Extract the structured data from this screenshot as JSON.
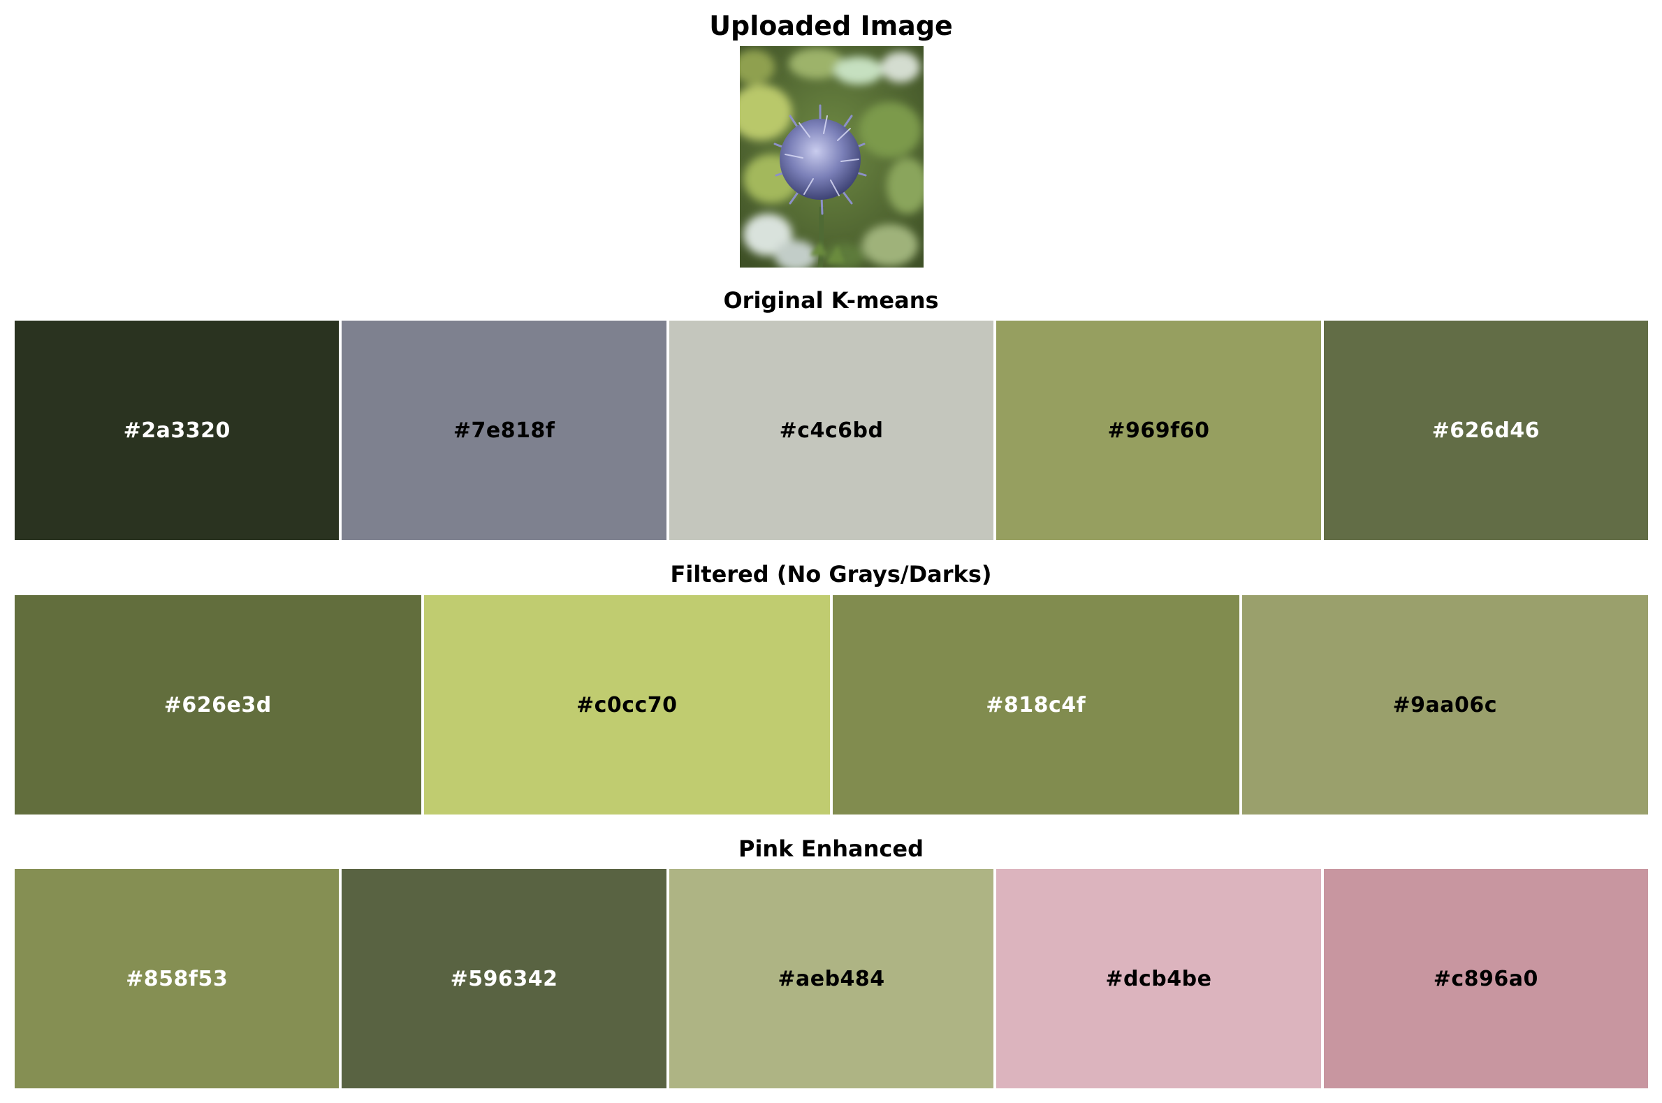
{
  "main_title": "Uploaded Image",
  "image": {
    "icon": "thistle-flower-photo"
  },
  "palettes": [
    {
      "title": "Original K-means",
      "swatches": [
        {
          "hex": "#2a3320",
          "text_color": "#ffffff"
        },
        {
          "hex": "#7e818f",
          "text_color": "#000000"
        },
        {
          "hex": "#c4c6bd",
          "text_color": "#000000"
        },
        {
          "hex": "#969f60",
          "text_color": "#000000"
        },
        {
          "hex": "#626d46",
          "text_color": "#ffffff"
        }
      ]
    },
    {
      "title": "Filtered (No Grays/Darks)",
      "swatches": [
        {
          "hex": "#626e3d",
          "text_color": "#ffffff"
        },
        {
          "hex": "#c0cc70",
          "text_color": "#000000"
        },
        {
          "hex": "#818c4f",
          "text_color": "#ffffff"
        },
        {
          "hex": "#9aa06c",
          "text_color": "#000000"
        }
      ]
    },
    {
      "title": "Pink Enhanced",
      "swatches": [
        {
          "hex": "#858f53",
          "text_color": "#ffffff"
        },
        {
          "hex": "#596342",
          "text_color": "#ffffff"
        },
        {
          "hex": "#aeb484",
          "text_color": "#000000"
        },
        {
          "hex": "#dcb4be",
          "text_color": "#000000"
        },
        {
          "hex": "#c896a0",
          "text_color": "#000000"
        }
      ]
    }
  ]
}
